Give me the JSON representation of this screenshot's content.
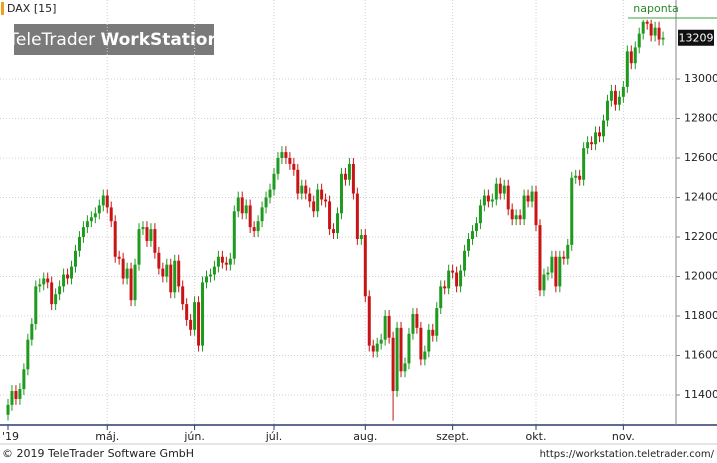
{
  "chart_data": {
    "type": "candlestick",
    "symbol_label": "DAX [15]",
    "interval_label": "naponta",
    "watermark_brand": "TeleTrader",
    "watermark_product": "WorkStation",
    "up_color": "#1e9a1e",
    "down_color": "#c81414",
    "grid": true,
    "ylim": [
      11248,
      13309
    ],
    "yticks": [
      11400,
      11600,
      11800,
      12000,
      12200,
      12400,
      12600,
      12800,
      13000
    ],
    "categories": [
      "'19",
      null,
      null,
      null,
      null,
      null,
      null,
      null,
      null,
      null,
      null,
      null,
      null,
      null,
      null,
      null,
      null,
      null,
      null,
      null,
      null,
      null,
      null,
      null,
      null,
      "máj.",
      null,
      null,
      null,
      null,
      null,
      null,
      null,
      null,
      null,
      null,
      null,
      null,
      null,
      null,
      null,
      null,
      null,
      null,
      null,
      null,
      null,
      "jún.",
      null,
      null,
      null,
      null,
      null,
      null,
      null,
      null,
      null,
      null,
      null,
      null,
      null,
      null,
      null,
      null,
      null,
      null,
      null,
      "júl.",
      null,
      null,
      null,
      null,
      null,
      null,
      null,
      null,
      null,
      null,
      null,
      null,
      null,
      null,
      null,
      null,
      null,
      null,
      null,
      null,
      null,
      null,
      "aug.",
      null,
      null,
      null,
      null,
      null,
      null,
      null,
      null,
      null,
      null,
      null,
      null,
      null,
      null,
      null,
      null,
      null,
      null,
      null,
      null,
      null,
      "szept.",
      null,
      null,
      null,
      null,
      null,
      null,
      null,
      null,
      null,
      null,
      null,
      null,
      null,
      null,
      null,
      null,
      null,
      null,
      null,
      null,
      "okt.",
      null,
      null,
      null,
      null,
      null,
      null,
      null,
      null,
      null,
      null,
      null,
      null,
      null,
      null,
      null,
      null,
      null,
      null,
      null,
      null,
      null,
      "nov.",
      null,
      null,
      null,
      null,
      null,
      null,
      null,
      null,
      null,
      null
    ],
    "open": [
      11300,
      11350,
      11420,
      11380,
      11430,
      11530,
      11680,
      11760,
      11950,
      11960,
      11990,
      11970,
      11860,
      11910,
      11950,
      12010,
      11990,
      12050,
      12130,
      12200,
      12250,
      12280,
      12300,
      12320,
      12360,
      12410,
      12350,
      12280,
      12100,
      12090,
      11990,
      12040,
      11880,
      12060,
      12240,
      12250,
      12180,
      12240,
      12120,
      12040,
      12000,
      12060,
      11920,
      12080,
      11950,
      11860,
      11780,
      11730,
      11870,
      11650,
      11970,
      12000,
      12010,
      12050,
      12100,
      12070,
      12060,
      12090,
      12330,
      12400,
      12320,
      12360,
      12250,
      12230,
      12280,
      12350,
      12400,
      12440,
      12520,
      12600,
      12630,
      12600,
      12570,
      12540,
      12420,
      12460,
      12420,
      12380,
      12330,
      12440,
      12390,
      12380,
      12240,
      12220,
      12320,
      12520,
      12490,
      12570,
      12420,
      12190,
      12210,
      11900,
      11650,
      11620,
      11660,
      11680,
      11800,
      11690,
      11420,
      11740,
      11520,
      11560,
      11710,
      11810,
      11740,
      11580,
      11620,
      11730,
      11700,
      11840,
      11950,
      11940,
      12030,
      12020,
      11950,
      12030,
      12130,
      12190,
      12230,
      12270,
      12360,
      12410,
      12380,
      12390,
      12470,
      12420,
      12460,
      12340,
      12290,
      12310,
      12290,
      12410,
      12380,
      12430,
      12260,
      11930,
      12010,
      12020,
      12100,
      11950,
      12100,
      12090,
      12160,
      12500,
      12510,
      12490,
      12650,
      12680,
      12670,
      12730,
      12710,
      12790,
      12890,
      12940,
      12870,
      12910,
      12960,
      13140,
      13080,
      13160,
      13230,
      13290,
      13280,
      13220,
      13260,
      13200
    ],
    "high": [
      11380,
      11450,
      11450,
      11460,
      11560,
      11710,
      11790,
      11980,
      11990,
      12020,
      12020,
      12000,
      11940,
      11980,
      12040,
      12040,
      12080,
      12160,
      12230,
      12280,
      12310,
      12330,
      12350,
      12390,
      12440,
      12440,
      12380,
      12310,
      12130,
      12120,
      12070,
      12070,
      12090,
      12270,
      12280,
      12280,
      12270,
      12270,
      12150,
      12070,
      12090,
      12090,
      12110,
      12110,
      11980,
      11890,
      11810,
      11900,
      11900,
      12000,
      12030,
      12040,
      12080,
      12130,
      12130,
      12100,
      12120,
      12360,
      12430,
      12430,
      12390,
      12390,
      12280,
      12310,
      12380,
      12430,
      12470,
      12550,
      12630,
      12660,
      12660,
      12630,
      12600,
      12570,
      12490,
      12490,
      12450,
      12410,
      12470,
      12470,
      12420,
      12410,
      12270,
      12350,
      12550,
      12550,
      12600,
      12600,
      12450,
      12240,
      12240,
      11930,
      11680,
      11690,
      11710,
      11830,
      11830,
      11720,
      11770,
      11770,
      11590,
      11740,
      11840,
      11840,
      11770,
      11650,
      11760,
      11760,
      11870,
      11980,
      11980,
      12060,
      12060,
      12050,
      12060,
      12160,
      12220,
      12260,
      12300,
      12390,
      12440,
      12440,
      12420,
      12500,
      12500,
      12490,
      12490,
      12370,
      12340,
      12340,
      12440,
      12440,
      12460,
      12460,
      12290,
      12040,
      12050,
      12130,
      12130,
      12130,
      12130,
      12190,
      12530,
      12540,
      12540,
      12680,
      12710,
      12710,
      12760,
      12760,
      12820,
      12920,
      12970,
      12970,
      12940,
      12990,
      13170,
      13170,
      13190,
      13260,
      13300,
      13300,
      13300,
      13290,
      13290,
      13240
    ],
    "low": [
      11270,
      11320,
      11350,
      11350,
      11400,
      11500,
      11650,
      11730,
      11920,
      11930,
      11940,
      11830,
      11830,
      11880,
      11920,
      11960,
      11960,
      12020,
      12100,
      12170,
      12220,
      12250,
      12270,
      12290,
      12330,
      12320,
      12250,
      12070,
      12060,
      11960,
      11960,
      11850,
      11850,
      12030,
      12210,
      12150,
      12150,
      12090,
      12010,
      11970,
      11970,
      11890,
      11890,
      11920,
      11830,
      11750,
      11700,
      11700,
      11620,
      11620,
      11940,
      11970,
      11980,
      12020,
      12040,
      12030,
      12030,
      12060,
      12300,
      12290,
      12290,
      12220,
      12200,
      12200,
      12250,
      12320,
      12370,
      12410,
      12490,
      12570,
      12570,
      12540,
      12510,
      12390,
      12390,
      12390,
      12350,
      12300,
      12300,
      12360,
      12350,
      12210,
      12190,
      12190,
      12290,
      12460,
      12460,
      12390,
      12160,
      12160,
      11870,
      11620,
      11590,
      11590,
      11630,
      11650,
      11660,
      11270,
      11390,
      11490,
      11490,
      11530,
      11680,
      11710,
      11550,
      11550,
      11590,
      11670,
      11670,
      11810,
      11910,
      11910,
      11990,
      11920,
      11920,
      12000,
      12100,
      12160,
      12200,
      12240,
      12330,
      12350,
      12350,
      12360,
      12390,
      12390,
      12310,
      12260,
      12260,
      12260,
      12260,
      12350,
      12350,
      12230,
      11900,
      11900,
      11980,
      11990,
      11920,
      11920,
      12060,
      12060,
      12130,
      12470,
      12460,
      12460,
      12620,
      12640,
      12640,
      12680,
      12680,
      12760,
      12860,
      12840,
      12840,
      12880,
      12930,
      13050,
      13050,
      13130,
      13200,
      13250,
      13190,
      13190,
      13170,
      13170
    ],
    "close": [
      11350,
      11420,
      11380,
      11430,
      11530,
      11680,
      11760,
      11950,
      11960,
      11990,
      11970,
      11860,
      11910,
      11950,
      12010,
      11990,
      12050,
      12130,
      12200,
      12250,
      12280,
      12300,
      12320,
      12360,
      12410,
      12350,
      12280,
      12100,
      12090,
      11990,
      12040,
      11880,
      12060,
      12240,
      12250,
      12180,
      12240,
      12120,
      12040,
      12000,
      12060,
      11920,
      12080,
      11950,
      11860,
      11780,
      11730,
      11870,
      11650,
      11970,
      12000,
      12010,
      12050,
      12100,
      12070,
      12060,
      12090,
      12330,
      12400,
      12320,
      12360,
      12250,
      12230,
      12280,
      12350,
      12400,
      12440,
      12520,
      12600,
      12630,
      12600,
      12570,
      12540,
      12420,
      12460,
      12420,
      12380,
      12330,
      12440,
      12390,
      12380,
      12240,
      12220,
      12320,
      12520,
      12490,
      12570,
      12420,
      12190,
      12210,
      11900,
      11650,
      11620,
      11660,
      11680,
      11800,
      11690,
      11420,
      11740,
      11520,
      11560,
      11710,
      11810,
      11740,
      11580,
      11620,
      11730,
      11700,
      11840,
      11950,
      11940,
      12030,
      12020,
      11950,
      12030,
      12130,
      12190,
      12230,
      12270,
      12360,
      12410,
      12380,
      12390,
      12470,
      12420,
      12460,
      12340,
      12290,
      12310,
      12290,
      12410,
      12380,
      12430,
      12260,
      11930,
      12010,
      12020,
      12100,
      11950,
      12100,
      12090,
      12160,
      12500,
      12510,
      12490,
      12650,
      12680,
      12670,
      12730,
      12710,
      12790,
      12890,
      12940,
      12870,
      12910,
      12960,
      13140,
      13080,
      13160,
      13230,
      13290,
      13280,
      13220,
      13260,
      13200,
      13209
    ]
  },
  "footer": {
    "copyright": "© 2019 TeleTrader Software GmbH",
    "url": "https://workstation.teletrader.com/"
  }
}
